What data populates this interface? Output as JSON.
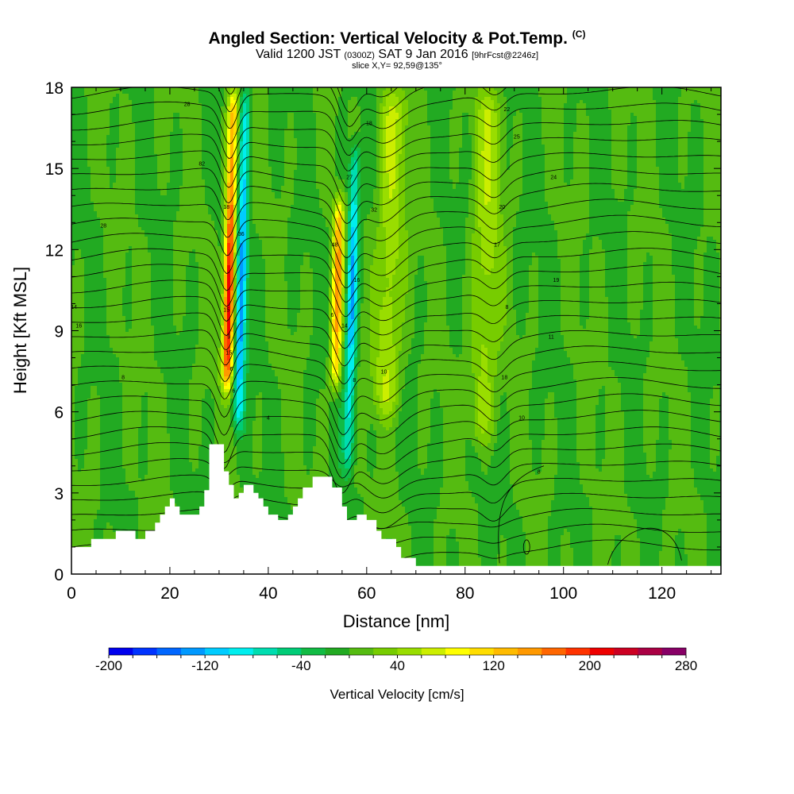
{
  "header": {
    "title": "Angled Section: Vertical Velocity & Pot.Temp.",
    "title_tag": "(C)",
    "valid_prefix": "Valid 1200 JST",
    "valid_utc": "(0300Z)",
    "valid_date": "SAT 9 Jan 2016",
    "forecast": "[9hrFcst@2246z]",
    "slice": "slice X,Y= 92,59@135°"
  },
  "chart_data": {
    "type": "heatmap",
    "title": "Angled Section: Vertical Velocity & Pot.Temp.",
    "xlabel": "Distance [nm]",
    "ylabel": "Height [Kft MSL]",
    "xlim": [
      0,
      132
    ],
    "ylim": [
      0,
      18
    ],
    "xticks": [
      0,
      20,
      40,
      60,
      80,
      100,
      120
    ],
    "yticks": [
      0,
      3,
      6,
      9,
      12,
      15,
      18
    ],
    "colorbar": {
      "label": "Vertical Velocity [cm/s]",
      "min": -200,
      "max": 280,
      "step": 20,
      "tick_labels": [
        -200,
        -120,
        -40,
        40,
        120,
        200,
        280
      ],
      "colors": [
        "#0000ee",
        "#0033ff",
        "#0066ff",
        "#0099ff",
        "#00ccff",
        "#00eeee",
        "#00ddb0",
        "#00cc77",
        "#11bb44",
        "#22aa22",
        "#55bb11",
        "#77cc00",
        "#99dd00",
        "#ccee00",
        "#ffff00",
        "#ffdd00",
        "#ffbb00",
        "#ff9900",
        "#ff6600",
        "#ff3300",
        "#ee0000",
        "#cc0022",
        "#aa0044",
        "#880066"
      ]
    },
    "background_velocity": 0,
    "updrafts": [
      {
        "x": 31.5,
        "y_from": 6,
        "y_to": 18,
        "peak": 230
      },
      {
        "x": 53.5,
        "y_from": 6,
        "y_to": 14,
        "peak": 150
      },
      {
        "x": 64,
        "y_from": 5,
        "y_to": 18,
        "peak": 60
      },
      {
        "x": 83.5,
        "y_from": 4,
        "y_to": 18,
        "peak": 50
      }
    ],
    "downdrafts": [
      {
        "x": 34,
        "y_from": 4.5,
        "y_to": 18,
        "peak": -140
      },
      {
        "x": 56.5,
        "y_from": 3,
        "y_to": 16,
        "peak": -130
      }
    ],
    "terrain": [
      [
        0,
        1
      ],
      [
        4,
        1
      ],
      [
        4,
        1.3
      ],
      [
        9,
        1.3
      ],
      [
        9,
        1.6
      ],
      [
        13,
        1.6
      ],
      [
        13,
        1.3
      ],
      [
        15,
        1.3
      ],
      [
        15,
        1.6
      ],
      [
        17,
        1.6
      ],
      [
        17,
        1.9
      ],
      [
        18,
        1.9
      ],
      [
        18,
        2.2
      ],
      [
        19,
        2.2
      ],
      [
        19,
        2.5
      ],
      [
        20,
        2.5
      ],
      [
        20,
        2.8
      ],
      [
        21,
        2.8
      ],
      [
        21,
        2.5
      ],
      [
        22,
        2.5
      ],
      [
        22,
        2.2
      ],
      [
        26,
        2.2
      ],
      [
        26,
        2.5
      ],
      [
        27,
        2.5
      ],
      [
        27,
        3.1
      ],
      [
        28,
        3.1
      ],
      [
        28,
        4.8
      ],
      [
        31,
        4.8
      ],
      [
        31,
        3.8
      ],
      [
        32,
        3.8
      ],
      [
        32,
        3.3
      ],
      [
        33,
        3.3
      ],
      [
        33,
        2.8
      ],
      [
        34,
        2.8
      ],
      [
        34,
        3
      ],
      [
        35,
        3
      ],
      [
        35,
        3.3
      ],
      [
        37,
        3.3
      ],
      [
        37,
        3
      ],
      [
        38,
        3
      ],
      [
        38,
        2.8
      ],
      [
        39,
        2.8
      ],
      [
        39,
        2.5
      ],
      [
        40,
        2.5
      ],
      [
        40,
        2.2
      ],
      [
        42,
        2.2
      ],
      [
        42,
        2
      ],
      [
        44,
        2
      ],
      [
        44,
        2.2
      ],
      [
        45,
        2.2
      ],
      [
        45,
        2.5
      ],
      [
        46,
        2.5
      ],
      [
        46,
        2.8
      ],
      [
        47,
        2.8
      ],
      [
        47,
        3.2
      ],
      [
        49,
        3.2
      ],
      [
        49,
        3.6
      ],
      [
        53,
        3.6
      ],
      [
        53,
        3.2
      ],
      [
        55,
        3.2
      ],
      [
        55,
        2.5
      ],
      [
        56,
        2.5
      ],
      [
        56,
        2
      ],
      [
        58,
        2
      ],
      [
        58,
        2.2
      ],
      [
        60,
        2.2
      ],
      [
        60,
        2
      ],
      [
        62,
        2
      ],
      [
        62,
        1.6
      ],
      [
        63,
        1.6
      ],
      [
        63,
        1.3
      ],
      [
        66,
        1.3
      ],
      [
        66,
        1
      ],
      [
        67,
        1
      ],
      [
        67,
        0.6
      ],
      [
        70,
        0.6
      ],
      [
        70,
        0.3
      ],
      [
        132,
        0.3
      ]
    ],
    "theta_contour_labels": [
      {
        "text": "28",
        "x": 23.5,
        "y": 17.4
      },
      {
        "text": "82",
        "x": 26.5,
        "y": 15.2
      },
      {
        "text": "28",
        "x": 6.5,
        "y": 12.9
      },
      {
        "text": "14",
        "x": 0.5,
        "y": 9.9
      },
      {
        "text": "16",
        "x": 1.5,
        "y": 9.2
      },
      {
        "text": "8",
        "x": 10.5,
        "y": 7.3
      },
      {
        "text": "4",
        "x": 40,
        "y": 5.8
      },
      {
        "text": "18",
        "x": 31.5,
        "y": 13.6
      },
      {
        "text": "36",
        "x": 34.5,
        "y": 12.6
      },
      {
        "text": "15",
        "x": 31.5,
        "y": 9.8
      },
      {
        "text": "9",
        "x": 32,
        "y": 8.8
      },
      {
        "text": "15",
        "x": 32,
        "y": 8.2
      },
      {
        "text": "6",
        "x": 32.5,
        "y": 7.6
      },
      {
        "text": "6",
        "x": 33,
        "y": 6.8
      },
      {
        "text": "18",
        "x": 60.5,
        "y": 16.7
      },
      {
        "text": "27",
        "x": 56.5,
        "y": 14.7
      },
      {
        "text": "32",
        "x": 61.5,
        "y": 13.5
      },
      {
        "text": "48",
        "x": 53.5,
        "y": 12.2
      },
      {
        "text": "16",
        "x": 58,
        "y": 10.9
      },
      {
        "text": "6",
        "x": 53,
        "y": 9.6
      },
      {
        "text": "14",
        "x": 55.5,
        "y": 9.2
      },
      {
        "text": "10",
        "x": 63.5,
        "y": 7.5
      },
      {
        "text": "8",
        "x": 57.5,
        "y": 7.2
      },
      {
        "text": "22",
        "x": 88.5,
        "y": 17.2
      },
      {
        "text": "25",
        "x": 90.5,
        "y": 16.2
      },
      {
        "text": "24",
        "x": 98,
        "y": 14.7
      },
      {
        "text": "20",
        "x": 87.5,
        "y": 13.6
      },
      {
        "text": "17",
        "x": 86.5,
        "y": 12.2
      },
      {
        "text": "19",
        "x": 98.5,
        "y": 10.9
      },
      {
        "text": "8",
        "x": 88.5,
        "y": 9.9
      },
      {
        "text": "11",
        "x": 97.5,
        "y": 8.8
      },
      {
        "text": "18",
        "x": 88,
        "y": 7.3
      },
      {
        "text": "10",
        "x": 91.5,
        "y": 5.8
      },
      {
        "text": "8",
        "x": 95,
        "y": 3.8
      }
    ]
  }
}
